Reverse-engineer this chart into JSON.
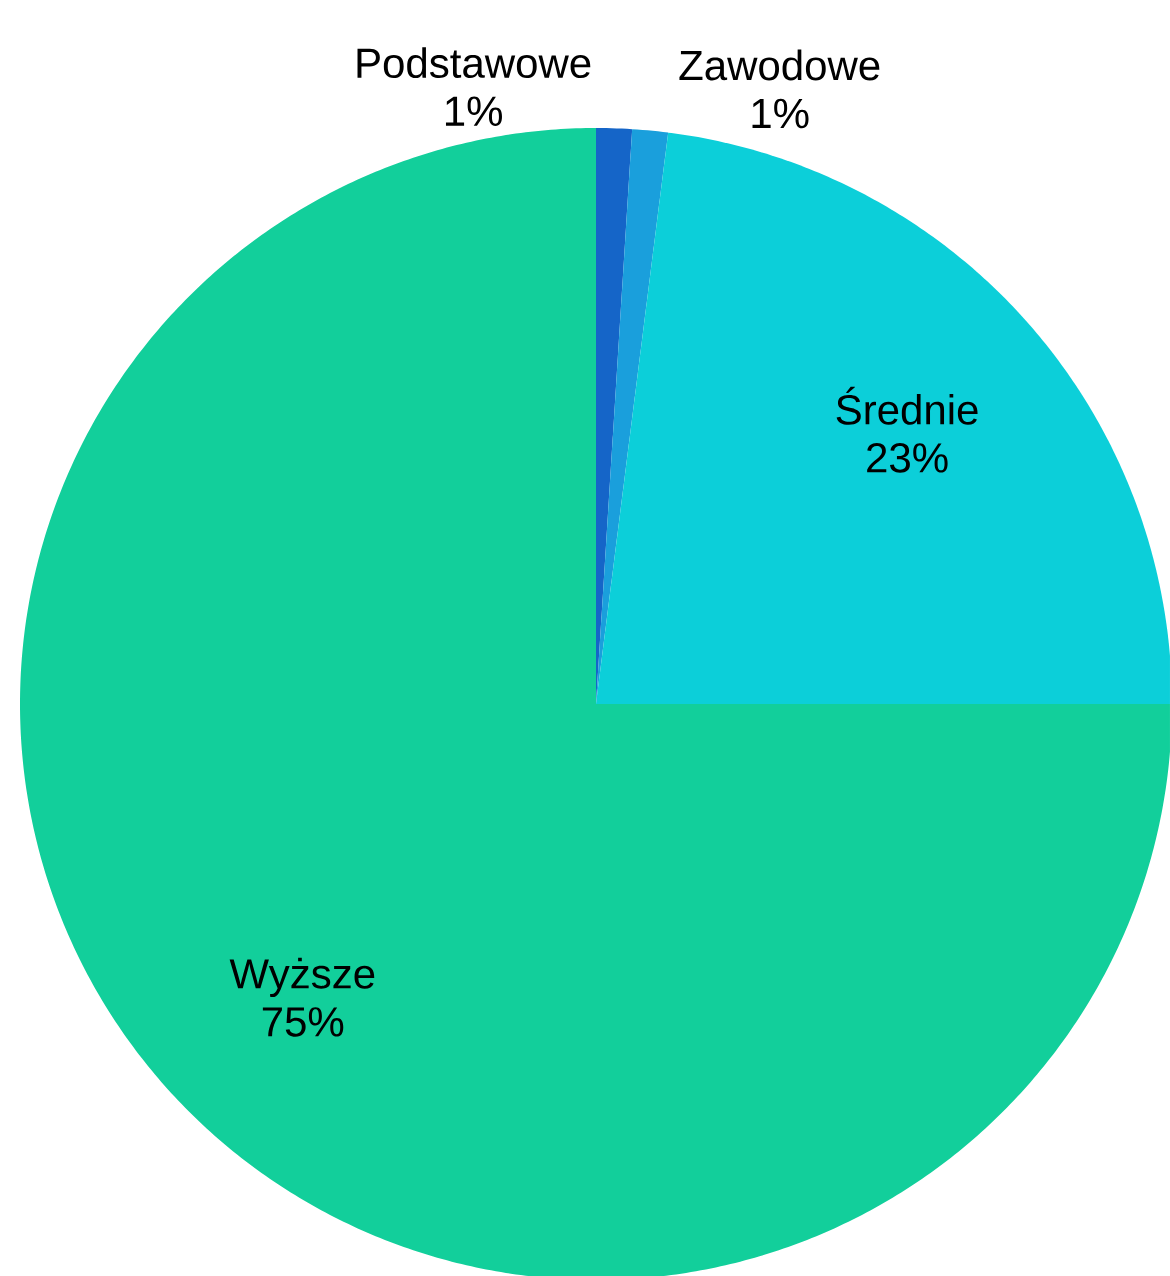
{
  "chart_data": {
    "type": "pie",
    "categories": [
      "Podstawowe",
      "Zawodowe",
      "Średnie",
      "Wyższe"
    ],
    "values": [
      1,
      1,
      23,
      75
    ],
    "value_labels": [
      "1%",
      "1%",
      "23%",
      "75%"
    ],
    "colors": [
      "#1565c8",
      "#1a9fdc",
      "#0ccfd9",
      "#12cf9b"
    ]
  }
}
